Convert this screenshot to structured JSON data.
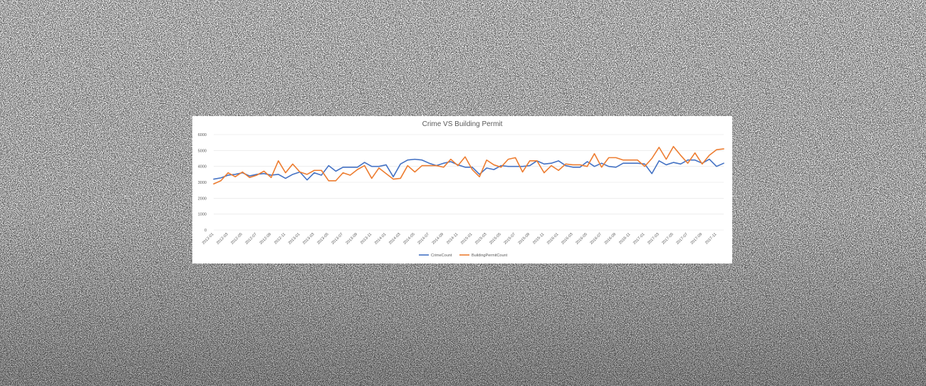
{
  "chart_data": {
    "type": "line",
    "title": "Crime VS Building Permit",
    "xlabel": "",
    "ylabel": "",
    "ylim": [
      0,
      6000
    ],
    "yticks": [
      "0",
      "1000",
      "2000",
      "3000",
      "4000",
      "5000",
      "6000"
    ],
    "grid": true,
    "legend_position": "bottom",
    "x": [
      "2012-01",
      "2012-02",
      "2012-03",
      "2012-04",
      "2012-05",
      "2012-06",
      "2012-07",
      "2012-08",
      "2012-09",
      "2012-10",
      "2012-11",
      "2012-12",
      "2013-01",
      "2013-02",
      "2013-03",
      "2013-04",
      "2013-05",
      "2013-06",
      "2013-07",
      "2013-08",
      "2013-09",
      "2013-10",
      "2013-11",
      "2013-12",
      "2014-01",
      "2014-02",
      "2014-03",
      "2014-04",
      "2014-05",
      "2014-06",
      "2014-07",
      "2014-08",
      "2014-09",
      "2014-10",
      "2014-11",
      "2014-12",
      "2015-01",
      "2015-02",
      "2015-03",
      "2015-04",
      "2015-05",
      "2015-06",
      "2015-07",
      "2015-08",
      "2015-09",
      "2015-10",
      "2015-11",
      "2015-12",
      "2016-01",
      "2016-02",
      "2016-03",
      "2016-04",
      "2016-05",
      "2016-06",
      "2016-07",
      "2016-08",
      "2016-09",
      "2016-10",
      "2016-11",
      "2016-12",
      "2017-01",
      "2017-02",
      "2017-03",
      "2017-04",
      "2017-05",
      "2017-06",
      "2017-07",
      "2017-08",
      "2017-09",
      "2017-10",
      "2017-11",
      "2017-12"
    ],
    "x_tick_labels": [
      "2012-01",
      "2012-03",
      "2012-05",
      "2012-07",
      "2012-09",
      "2012-11",
      "2013-01",
      "2013-03",
      "2013-05",
      "2013-07",
      "2013-09",
      "2013-11",
      "2014-01",
      "2014-03",
      "2014-05",
      "2014-07",
      "2014-09",
      "2014-11",
      "2015-01",
      "2015-03",
      "2015-05",
      "2015-07",
      "2015-09",
      "2015-11",
      "2016-01",
      "2016-03",
      "2016-05",
      "2016-07",
      "2016-09",
      "2016-11",
      "2017-01",
      "2017-03",
      "2017-05",
      "2017-07",
      "2017-09",
      "2017-11"
    ],
    "series": [
      {
        "name": "CrimeCount",
        "color": "#4472c4",
        "values": [
          3200,
          3280,
          3450,
          3500,
          3600,
          3400,
          3500,
          3550,
          3450,
          3500,
          3250,
          3500,
          3650,
          3150,
          3600,
          3450,
          4050,
          3700,
          3950,
          3950,
          3950,
          4250,
          4000,
          4000,
          4100,
          3350,
          4150,
          4400,
          4450,
          4400,
          4200,
          4050,
          4200,
          4300,
          4100,
          3950,
          3950,
          3500,
          3900,
          3800,
          4050,
          4000,
          4000,
          4000,
          4050,
          4350,
          4150,
          4200,
          4350,
          4050,
          3950,
          3950,
          4300,
          4000,
          4200,
          4000,
          3950,
          4200,
          4200,
          4200,
          4150,
          3550,
          4350,
          4100,
          4250,
          4150,
          4400,
          4400,
          4200,
          4450,
          4000,
          4200
        ]
      },
      {
        "name": "BuildingPermitCount",
        "color": "#ed7d31",
        "values": [
          2900,
          3100,
          3600,
          3350,
          3650,
          3300,
          3450,
          3700,
          3300,
          4350,
          3600,
          4150,
          3650,
          3500,
          3750,
          3750,
          3100,
          3100,
          3600,
          3450,
          3800,
          4050,
          3250,
          3900,
          3550,
          3200,
          3250,
          4050,
          3650,
          4050,
          4050,
          4050,
          3950,
          4450,
          4050,
          4600,
          3800,
          3350,
          4400,
          4100,
          3950,
          4450,
          4550,
          3650,
          4350,
          4350,
          3600,
          4050,
          3750,
          4150,
          4100,
          4100,
          4000,
          4800,
          3950,
          4550,
          4550,
          4400,
          4400,
          4400,
          4000,
          4500,
          5200,
          4450,
          5250,
          4700,
          4200,
          4850,
          4150,
          4700,
          5050,
          5100
        ]
      }
    ]
  }
}
